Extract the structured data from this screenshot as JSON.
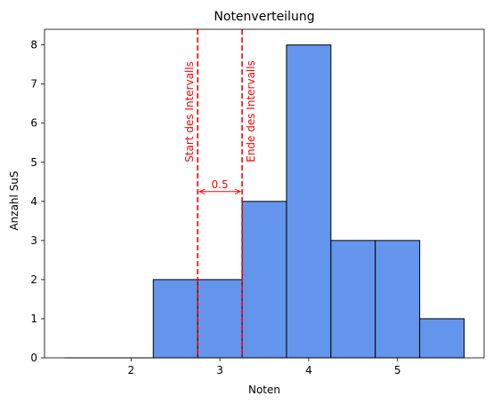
{
  "chart_data": {
    "type": "bar",
    "title": "Notenverteilung",
    "xlabel": "Noten",
    "ylabel": "Anzahl SuS",
    "bin_width": 0.5,
    "bins": [
      {
        "start": 1.25,
        "end": 1.75,
        "count": 0
      },
      {
        "start": 1.75,
        "end": 2.25,
        "count": 0
      },
      {
        "start": 2.25,
        "end": 2.75,
        "count": 2
      },
      {
        "start": 2.75,
        "end": 3.25,
        "count": 2
      },
      {
        "start": 3.25,
        "end": 3.75,
        "count": 4
      },
      {
        "start": 3.75,
        "end": 4.25,
        "count": 8
      },
      {
        "start": 4.25,
        "end": 4.75,
        "count": 3
      },
      {
        "start": 4.75,
        "end": 5.25,
        "count": 3
      },
      {
        "start": 5.25,
        "end": 5.75,
        "count": 1
      }
    ],
    "xlim": [
      1.025,
      5.975
    ],
    "ylim": [
      0,
      8.4
    ],
    "xticks": [
      2,
      3,
      4,
      5
    ],
    "yticks": [
      0,
      1,
      2,
      3,
      4,
      5,
      6,
      7,
      8
    ],
    "bar_color": "#6495ed",
    "bar_edge_color": "#000000",
    "grid": false,
    "annotations": {
      "color": "#ff0000",
      "interval_start": {
        "x": 2.75,
        "label": "Start des Intervalls"
      },
      "interval_end": {
        "x": 3.25,
        "label": "Ende des Intervalls"
      },
      "width_arrow": {
        "y": 4.25,
        "label": "0.5"
      }
    }
  }
}
